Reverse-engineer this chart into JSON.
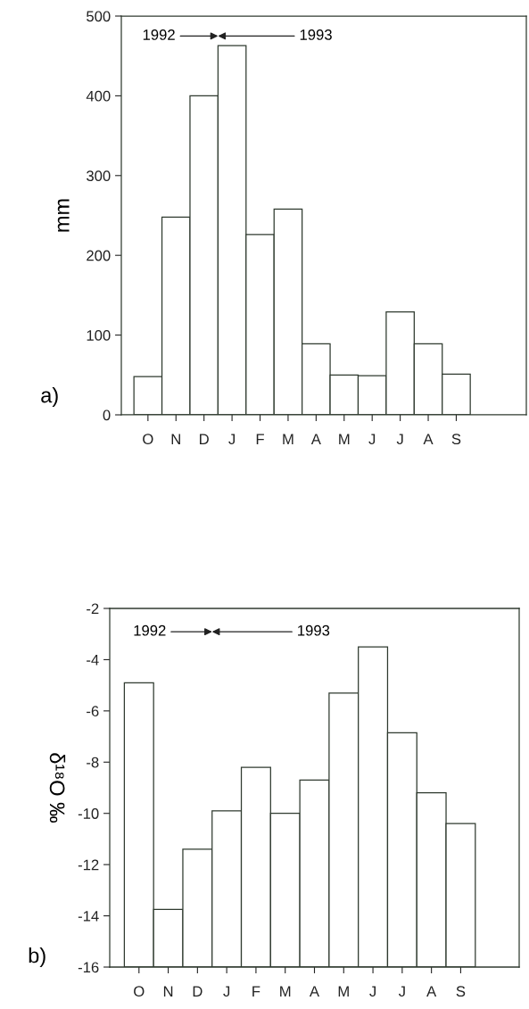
{
  "chart_data": [
    {
      "type": "bar",
      "ylabel": "mm",
      "categories": [
        "O",
        "N",
        "D",
        "J",
        "F",
        "M",
        "A",
        "M",
        "J",
        "J",
        "A",
        "S"
      ],
      "values": [
        48,
        248,
        400,
        463,
        226,
        258,
        89,
        50,
        49,
        129,
        89,
        51
      ],
      "color": "#ffffff",
      "ylim": [
        0,
        500
      ],
      "yticks": [
        0,
        100,
        200,
        300,
        400,
        500
      ],
      "grid": false,
      "annotations": [
        "1992",
        "1993",
        "a)"
      ]
    },
    {
      "type": "bar",
      "ylabel": "δ¹⁸O ‰",
      "categories": [
        "O",
        "N",
        "D",
        "J",
        "F",
        "M",
        "A",
        "M",
        "J",
        "J",
        "A",
        "S"
      ],
      "base": [
        -16,
        -16,
        -16,
        -16,
        -16,
        -16,
        -16,
        -16,
        -16,
        -16,
        -16,
        -16
      ],
      "values": [
        11.1,
        2.25,
        4.6,
        6.1,
        7.8,
        6,
        7.3,
        10.7,
        12.5,
        9.15,
        6.8,
        5.6
      ],
      "color": "#ffffff",
      "ylim": [
        -16,
        -2
      ],
      "yticks": [
        -16,
        -14,
        -12,
        -10,
        -8,
        -6,
        -4,
        -2
      ],
      "grid": false,
      "annotations": [
        "1992",
        "1993",
        "b)"
      ]
    }
  ]
}
